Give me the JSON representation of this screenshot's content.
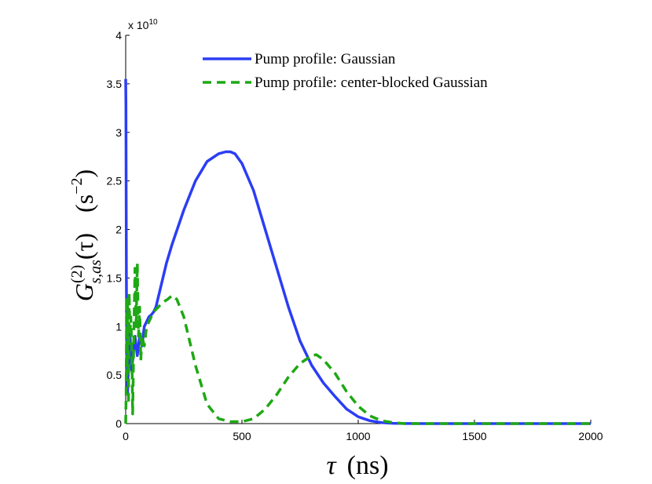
{
  "chart_data": {
    "type": "line",
    "title": "",
    "xlabel": "τ (ns)",
    "ylabel": "G(2)s,as(τ) (s−2)",
    "ylabel_parts": {
      "G": "G",
      "sup": "(2)",
      "sub": "s,as",
      "arg": "(τ)",
      "unit_open": "(s",
      "unit_exp": "−2",
      "unit_close": ")"
    },
    "xlabel_parts": {
      "sym": "τ",
      "unit": "(ns)"
    },
    "xlim": [
      0,
      2000
    ],
    "ylim": [
      0,
      4
    ],
    "y_multiplier": "x 10",
    "y_multiplier_exp": "10",
    "x_ticks": [
      "0",
      "500",
      "1000",
      "1500",
      "2000"
    ],
    "y_ticks": [
      "0",
      "0.5",
      "1",
      "1.5",
      "2",
      "2.5",
      "3",
      "3.5",
      "4"
    ],
    "x_tick_values": [
      0,
      500,
      1000,
      1500,
      2000
    ],
    "y_tick_values": [
      0,
      0.5,
      1,
      1.5,
      2,
      2.5,
      3,
      3.5,
      4
    ],
    "legend_position": "top-center",
    "series": [
      {
        "name": "Pump profile: Gaussian",
        "color": "#2b3df5",
        "dash": "solid",
        "x": [
          0,
          1,
          3,
          5,
          8,
          12,
          16,
          20,
          25,
          30,
          40,
          50,
          60,
          70,
          80,
          90,
          100,
          110,
          120,
          130,
          150,
          175,
          200,
          250,
          300,
          350,
          400,
          430,
          450,
          470,
          500,
          550,
          600,
          650,
          700,
          750,
          800,
          850,
          900,
          950,
          1000,
          1050,
          1100,
          1150,
          1200,
          1300,
          1500,
          2000
        ],
        "y": [
          3.55,
          3.3,
          1.5,
          0.6,
          0.3,
          0.65,
          1.0,
          0.85,
          0.55,
          0.65,
          0.9,
          0.7,
          0.9,
          0.8,
          1.0,
          1.05,
          1.1,
          1.12,
          1.15,
          1.2,
          1.4,
          1.65,
          1.85,
          2.2,
          2.5,
          2.7,
          2.78,
          2.8,
          2.8,
          2.78,
          2.68,
          2.4,
          2.0,
          1.6,
          1.2,
          0.85,
          0.6,
          0.42,
          0.28,
          0.15,
          0.07,
          0.03,
          0.01,
          0.003,
          0.001,
          0.0,
          0.0,
          0.0
        ]
      },
      {
        "name": "Pump profile: center-blocked Gaussian",
        "color": "#1ea814",
        "dash": "dashed",
        "x": [
          0,
          2,
          4,
          6,
          9,
          12,
          15,
          18,
          22,
          26,
          30,
          35,
          40,
          45,
          50,
          55,
          60,
          65,
          70,
          80,
          90,
          100,
          120,
          140,
          160,
          180,
          200,
          220,
          250,
          300,
          350,
          400,
          450,
          500,
          550,
          600,
          650,
          700,
          750,
          800,
          820,
          850,
          900,
          950,
          1000,
          1050,
          1100,
          1150,
          1200,
          1300,
          1500,
          2000
        ],
        "y": [
          0.0,
          0.3,
          1.3,
          0.5,
          1.25,
          0.2,
          1.35,
          0.9,
          1.1,
          0.8,
          0.1,
          0.9,
          1.6,
          1.0,
          1.65,
          0.9,
          1.2,
          0.65,
          0.9,
          0.8,
          1.0,
          1.05,
          1.15,
          1.2,
          1.25,
          1.28,
          1.32,
          1.28,
          1.1,
          0.6,
          0.2,
          0.05,
          0.02,
          0.02,
          0.05,
          0.15,
          0.3,
          0.48,
          0.62,
          0.7,
          0.71,
          0.66,
          0.52,
          0.33,
          0.18,
          0.08,
          0.03,
          0.01,
          0.0,
          0.0,
          0.0,
          0.0
        ]
      }
    ]
  }
}
